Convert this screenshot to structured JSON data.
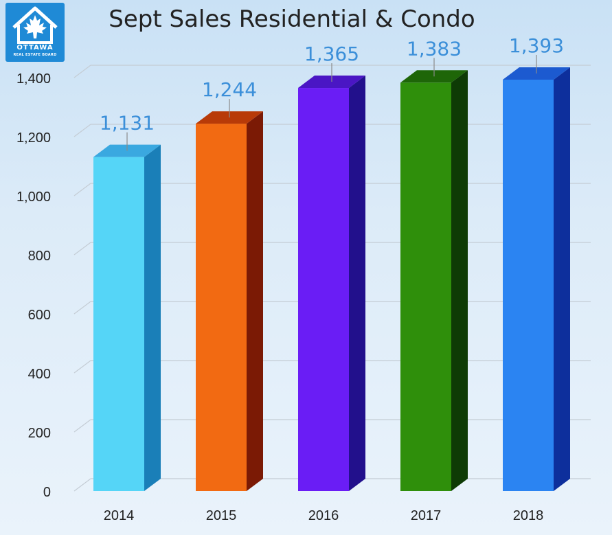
{
  "logo": {
    "name": "OTTAWA",
    "subtitle": "REAL ESTATE BOARD",
    "icon": "house-maple-leaf-icon"
  },
  "chart_data": {
    "type": "bar",
    "title": "Sept Sales Residential & Condo",
    "xlabel": "",
    "ylabel": "",
    "categories": [
      "2014",
      "2015",
      "2016",
      "2017",
      "2018"
    ],
    "values": [
      1131,
      1244,
      1365,
      1383,
      1393
    ],
    "data_labels": [
      "1,131",
      "1,244",
      "1,365",
      "1,383",
      "1,393"
    ],
    "ylim": [
      0,
      1400
    ],
    "yticks": [
      0,
      200,
      400,
      600,
      800,
      1000,
      1200,
      1400
    ],
    "ytick_labels": [
      "0",
      "200",
      "400",
      "600",
      "800",
      "1,000",
      "1,200",
      "1,400"
    ],
    "grid": true,
    "style_3d": true,
    "bar_colors": [
      {
        "front": "#55d5f7",
        "side": "#1a7fb8",
        "top": "#3aa8e0"
      },
      {
        "front": "#f26a12",
        "side": "#7b1a05",
        "top": "#b83a08"
      },
      {
        "front": "#6a1df5",
        "side": "#22108c",
        "top": "#4a16c4"
      },
      {
        "front": "#2f8f0b",
        "side": "#0e3b05",
        "top": "#1e6608"
      },
      {
        "front": "#2b84f2",
        "side": "#0d2f9c",
        "top": "#1c5ad0"
      }
    ],
    "data_label_color": "#3b8fd9"
  }
}
